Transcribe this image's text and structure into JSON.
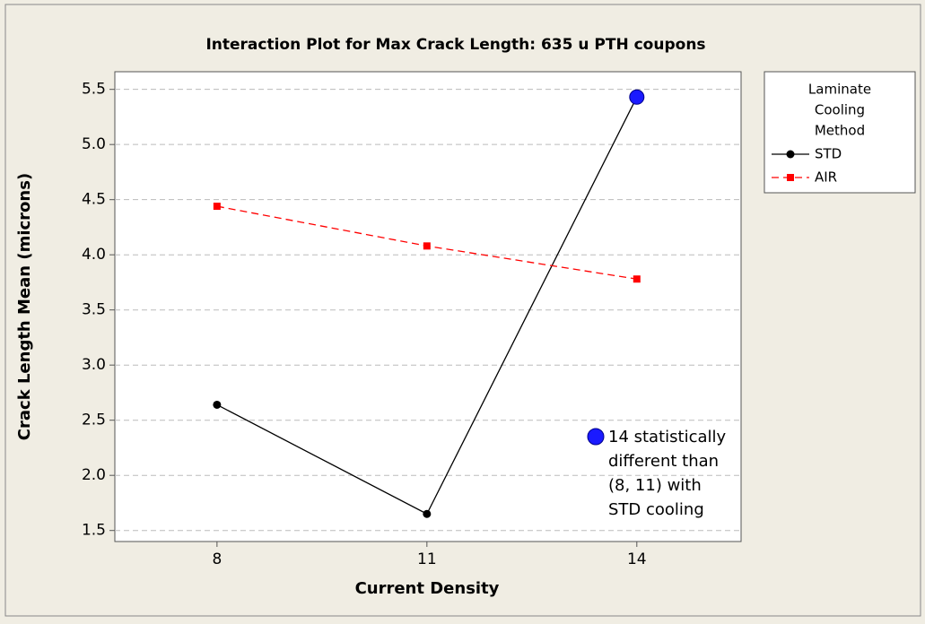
{
  "chart_data": {
    "type": "line",
    "title": "Interaction Plot for Max Crack Length: 635 u PTH coupons",
    "x_label": "Current Density",
    "y_label": "Crack Length Mean (microns)",
    "x": [
      8,
      11,
      14
    ],
    "xlim": [
      6.54,
      15.49
    ],
    "xticks": [
      8,
      11,
      14
    ],
    "ylim": [
      1.4,
      5.66
    ],
    "yticks": [
      {
        "value": 1.5,
        "label": "1.5"
      },
      {
        "value": 2,
        "label": "2.0"
      },
      {
        "value": 2.5,
        "label": "2.5"
      },
      {
        "value": 3,
        "label": "3.0"
      },
      {
        "value": 3.5,
        "label": "3.5"
      },
      {
        "value": 4,
        "label": "4.0"
      },
      {
        "value": 4.5,
        "label": "4.5"
      },
      {
        "value": 5,
        "label": "5.0"
      },
      {
        "value": 5.5,
        "label": "5.5"
      }
    ],
    "grid": true,
    "legend_title": [
      "Laminate",
      "Cooling",
      "Method"
    ],
    "legend_position": "right",
    "series": [
      {
        "name": "STD",
        "color": "#000000",
        "marker": "circle",
        "dash": false,
        "values": [
          2.64,
          1.65,
          5.43
        ],
        "highlight_index": 2,
        "highlight_color": "#1a1aff"
      },
      {
        "name": "AIR",
        "color": "#ff0000",
        "marker": "square",
        "dash": true,
        "values": [
          4.44,
          4.08,
          3.78
        ]
      }
    ],
    "annotation": [
      "14 statistically",
      "different than",
      "(8, 11) with",
      "STD cooling"
    ]
  }
}
